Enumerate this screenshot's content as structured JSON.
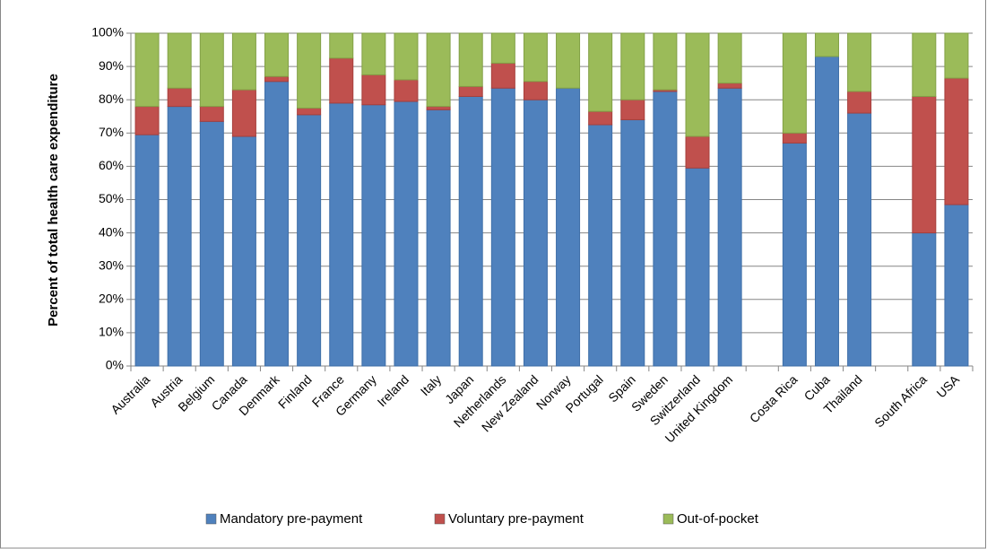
{
  "chart_data": {
    "type": "stacked_bar",
    "y_label": "Percent of total health care expenditure",
    "categories": [
      "Australia",
      "Austria",
      "Belgium",
      "Canada",
      "Denmark",
      "Finland",
      "France",
      "Germany",
      "Ireland",
      "Italy",
      "Japan",
      "Netherlands",
      "New Zealand",
      "Norway",
      "Portugal",
      "Spain",
      "Sweden",
      "Switzerland",
      "United Kingdom",
      null,
      "Costa Rica",
      "Cuba",
      "Thailand",
      null,
      "South Africa",
      "USA"
    ],
    "series": [
      {
        "name": "Mandatory pre-payment",
        "color": "#4f81bd",
        "values": [
          69.5,
          78,
          73.5,
          69,
          85.5,
          75.5,
          79,
          78.5,
          79.5,
          77,
          81,
          83.5,
          80,
          83.5,
          72.5,
          74,
          82.5,
          59.5,
          83.5,
          null,
          67,
          93,
          76,
          null,
          40,
          48.5
        ]
      },
      {
        "name": "Voluntary pre-payment",
        "color": "#c0504d",
        "values": [
          8.5,
          5.5,
          4.5,
          14,
          1.5,
          2,
          13.5,
          9,
          6.5,
          1,
          3,
          7.5,
          5.5,
          0,
          4,
          6,
          0.5,
          9.5,
          1.5,
          null,
          3,
          0,
          6.5,
          null,
          41,
          38
        ]
      },
      {
        "name": "Out-of-pocket",
        "color": "#9bbb59",
        "values": [
          22,
          16.5,
          22,
          17,
          13,
          22.5,
          7.5,
          12.5,
          14,
          22,
          16,
          9,
          14.5,
          16.5,
          23.5,
          20,
          17,
          31,
          15,
          null,
          30,
          7,
          17.5,
          null,
          19,
          13.5
        ]
      }
    ],
    "ylim": [
      0,
      100
    ],
    "yticks": [
      {
        "value": 0,
        "label": "0%"
      },
      {
        "value": 10,
        "label": "10%"
      },
      {
        "value": 20,
        "label": "20%"
      },
      {
        "value": 30,
        "label": "30%"
      },
      {
        "value": 40,
        "label": "40%"
      },
      {
        "value": 50,
        "label": "50%"
      },
      {
        "value": 60,
        "label": "60%"
      },
      {
        "value": 70,
        "label": "70%"
      },
      {
        "value": 80,
        "label": "80%"
      },
      {
        "value": 90,
        "label": "90%"
      },
      {
        "value": 100,
        "label": "100%"
      }
    ],
    "grid": true,
    "legend": "bottom"
  }
}
